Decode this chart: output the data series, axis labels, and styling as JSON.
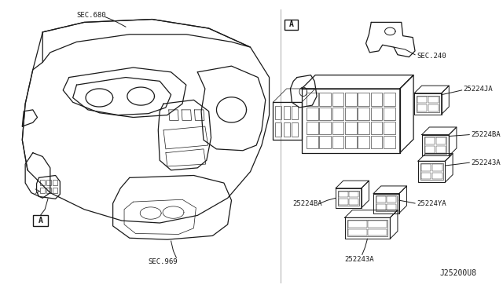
{
  "bg_color": "#ffffff",
  "line_color": "#1a1a1a",
  "fig_width": 6.4,
  "fig_height": 3.72,
  "diagram_code": "J25200U8",
  "labels": {
    "sec680": "SEC.680",
    "sec969": "SEC.969",
    "sec240": "SEC.240",
    "label_25224ja": "25224JA",
    "label_25224ba_left": "25224BA",
    "label_25224ba_right": "25224BA",
    "label_25224ya": "25224YA",
    "label_252243a_bot": "252243A",
    "label_252243a_right": "252243A",
    "label_A_left": "A",
    "label_A_right": "A"
  }
}
